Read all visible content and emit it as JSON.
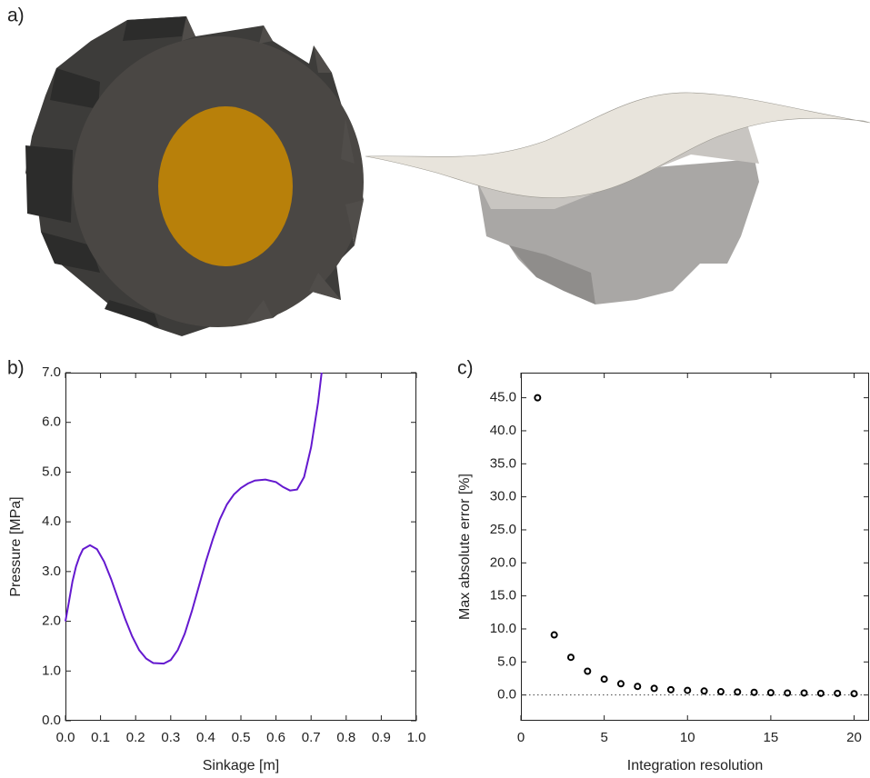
{
  "figure": {
    "panel_a_label": "a)"
  },
  "chart_data": [
    {
      "type": "line",
      "panel_label": "b)",
      "xlabel": "Sinkage [m]",
      "ylabel": "Pressure [MPa]",
      "color": "#6419cf",
      "x": [
        0,
        0.01,
        0.02,
        0.03,
        0.04,
        0.05,
        0.07,
        0.09,
        0.11,
        0.13,
        0.15,
        0.17,
        0.19,
        0.21,
        0.23,
        0.25,
        0.28,
        0.3,
        0.32,
        0.34,
        0.36,
        0.38,
        0.4,
        0.42,
        0.44,
        0.46,
        0.48,
        0.5,
        0.52,
        0.54,
        0.57,
        0.6,
        0.62,
        0.64,
        0.66,
        0.68,
        0.7,
        0.72,
        0.73
      ],
      "values": [
        2.0,
        2.4,
        2.8,
        3.1,
        3.3,
        3.45,
        3.53,
        3.45,
        3.2,
        2.85,
        2.45,
        2.05,
        1.7,
        1.42,
        1.25,
        1.16,
        1.15,
        1.22,
        1.42,
        1.75,
        2.2,
        2.7,
        3.2,
        3.65,
        4.05,
        4.35,
        4.55,
        4.68,
        4.77,
        4.83,
        4.85,
        4.8,
        4.7,
        4.63,
        4.65,
        4.9,
        5.5,
        6.4,
        7.0
      ],
      "xlim": [
        0,
        1.0
      ],
      "ylim": [
        0,
        7.0
      ],
      "xticks": [
        {
          "value": 0,
          "label": "0.0"
        },
        {
          "value": 0.1,
          "label": "0.1"
        },
        {
          "value": 0.2,
          "label": "0.2"
        },
        {
          "value": 0.3,
          "label": "0.3"
        },
        {
          "value": 0.4,
          "label": "0.4"
        },
        {
          "value": 0.5,
          "label": "0.5"
        },
        {
          "value": 0.6,
          "label": "0.6"
        },
        {
          "value": 0.7,
          "label": "0.7"
        },
        {
          "value": 0.8,
          "label": "0.8"
        },
        {
          "value": 0.9,
          "label": "0.9"
        },
        {
          "value": 1.0,
          "label": "1.0"
        }
      ],
      "yticks": [
        {
          "value": 0,
          "label": "0.0"
        },
        {
          "value": 1,
          "label": "1.0"
        },
        {
          "value": 2,
          "label": "2.0"
        },
        {
          "value": 3,
          "label": "3.0"
        },
        {
          "value": 4,
          "label": "4.0"
        },
        {
          "value": 5,
          "label": "5.0"
        },
        {
          "value": 6,
          "label": "6.0"
        },
        {
          "value": 7,
          "label": "7.0"
        }
      ]
    },
    {
      "type": "scatter",
      "panel_label": "c)",
      "xlabel": "Integration resolution",
      "ylabel": "Max absolute error [%]",
      "color": "#000000",
      "x": [
        1,
        2,
        3,
        4,
        5,
        6,
        7,
        8,
        9,
        10,
        11,
        12,
        13,
        14,
        15,
        16,
        17,
        18,
        19,
        20
      ],
      "values": [
        45.0,
        9.1,
        5.7,
        3.6,
        2.4,
        1.7,
        1.3,
        1.0,
        0.8,
        0.7,
        0.6,
        0.5,
        0.45,
        0.4,
        0.35,
        0.3,
        0.3,
        0.25,
        0.25,
        0.2
      ],
      "xlim": [
        0,
        20.9
      ],
      "ylim": [
        -3.9,
        48.8
      ],
      "hline": 0,
      "xticks": [
        0,
        5,
        10,
        15,
        20
      ],
      "yticks": [
        {
          "value": 0,
          "label": "0.0"
        },
        {
          "value": 5,
          "label": "5.0"
        },
        {
          "value": 10,
          "label": "10.0"
        },
        {
          "value": 15,
          "label": "15.0"
        },
        {
          "value": 20,
          "label": "20.0"
        },
        {
          "value": 25,
          "label": "25.0"
        },
        {
          "value": 30,
          "label": "30.0"
        },
        {
          "value": 35,
          "label": "35.0"
        },
        {
          "value": 40,
          "label": "40.0"
        },
        {
          "value": 45,
          "label": "45.0"
        }
      ]
    }
  ]
}
